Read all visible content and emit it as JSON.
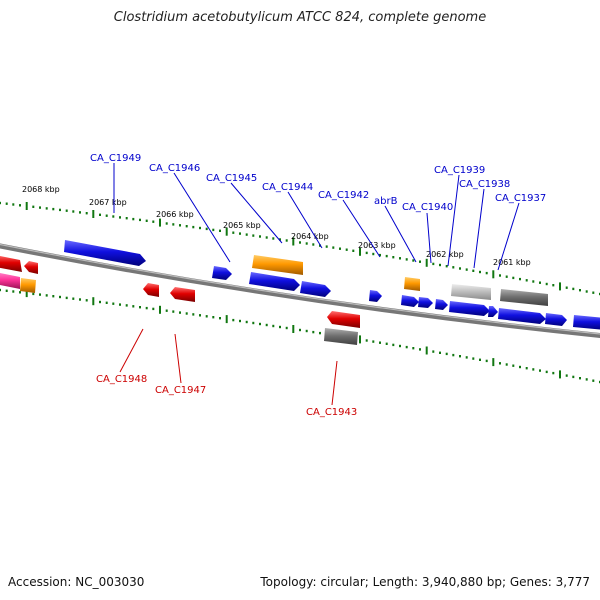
{
  "title": "Clostridium acetobutylicum ATCC 824, complete genome",
  "footer": {
    "accession": "Accession: NC_003030",
    "topology": "Topology: circular; Length: 3,940,880 bp; Genes: 3,777"
  },
  "colors": {
    "forward_gene": "#1010e0",
    "reverse_gene": "#e00000",
    "orange_feature": "#ff9900",
    "pink_feature": "#ff3399",
    "gray_feature": "#808080",
    "lightgray_feature": "#c0c0c0",
    "backbone": "#888888",
    "tick": "#117711",
    "label_forward": "#0000cc",
    "label_reverse": "#cc0000"
  },
  "kbp_ticks": [
    "2068 kbp",
    "2067 kbp",
    "2066 kbp",
    "2065 kbp",
    "2064 kbp",
    "2063 kbp",
    "2062 kbp",
    "2061 kbp"
  ],
  "labels_forward": [
    "CA_C1949",
    "CA_C1946",
    "CA_C1945",
    "CA_C1944",
    "CA_C1942",
    "abrB",
    "CA_C1940",
    "CA_C1939",
    "CA_C1938",
    "CA_C1937"
  ],
  "labels_reverse": [
    "CA_C1948",
    "CA_C1947",
    "CA_C1943"
  ]
}
